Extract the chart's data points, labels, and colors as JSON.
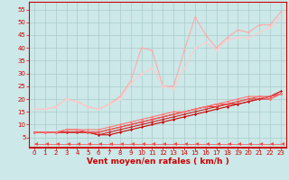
{
  "xlabel": "Vent moyen/en rafales ( km/h )",
  "bg_color": "#cce8e8",
  "grid_color": "#aacccc",
  "x": [
    0,
    1,
    2,
    3,
    4,
    5,
    6,
    7,
    8,
    9,
    10,
    11,
    12,
    13,
    14,
    15,
    16,
    17,
    18,
    19,
    20,
    21,
    22,
    23
  ],
  "lines": [
    {
      "y": [
        7,
        7,
        7,
        7,
        7,
        7,
        6,
        6,
        7,
        8,
        9,
        10,
        11,
        12,
        13,
        14,
        15,
        16,
        17,
        18,
        19,
        20,
        21,
        23
      ],
      "color": "#cc0000",
      "lw": 0.8,
      "marker": "D",
      "ms": 1.5
    },
    {
      "y": [
        7,
        7,
        7,
        7,
        7,
        7,
        6,
        7,
        8,
        9,
        10,
        11,
        12,
        13,
        14,
        15,
        16,
        17,
        18,
        18,
        19,
        20,
        20,
        22
      ],
      "color": "#cc2222",
      "lw": 0.8,
      "marker": "D",
      "ms": 1.5
    },
    {
      "y": [
        7,
        7,
        7,
        7,
        7,
        7,
        7,
        8,
        9,
        10,
        11,
        12,
        13,
        14,
        15,
        16,
        17,
        17,
        18,
        19,
        20,
        20,
        21,
        22
      ],
      "color": "#dd3333",
      "lw": 0.8,
      "marker": "D",
      "ms": 1.5
    },
    {
      "y": [
        7,
        7,
        7,
        8,
        8,
        7,
        7,
        8,
        9,
        10,
        11,
        12,
        13,
        14,
        15,
        16,
        17,
        18,
        18,
        19,
        20,
        21,
        21,
        22
      ],
      "color": "#ee5555",
      "lw": 0.8,
      "marker": "D",
      "ms": 1.5
    },
    {
      "y": [
        7,
        7,
        7,
        8,
        8,
        8,
        8,
        9,
        10,
        11,
        12,
        13,
        14,
        15,
        15,
        16,
        17,
        18,
        19,
        20,
        21,
        21,
        20,
        22
      ],
      "color": "#ff7777",
      "lw": 0.8,
      "marker": "D",
      "ms": 1.5
    },
    {
      "y": [
        16,
        16,
        17,
        20,
        19,
        17,
        16,
        18,
        21,
        27,
        40,
        39,
        25,
        25,
        39,
        52,
        45,
        40,
        44,
        47,
        46,
        49,
        49,
        54
      ],
      "color": "#ffaaaa",
      "lw": 0.8,
      "marker": "D",
      "ms": 1.5
    },
    {
      "y": [
        16,
        16,
        17,
        20,
        19,
        17,
        16,
        18,
        20,
        26,
        30,
        32,
        25,
        24,
        32,
        40,
        42,
        39,
        43,
        44,
        44,
        46,
        48,
        52
      ],
      "color": "#ffcccc",
      "lw": 0.8,
      "marker": "D",
      "ms": 1.5
    },
    {
      "y": [
        2.5,
        2.5,
        2.5,
        2.5,
        2.5,
        2.5,
        2.5,
        2.5,
        2.5,
        2.5,
        2.5,
        2.5,
        2.5,
        2.5,
        2.5,
        2.5,
        2.5,
        2.5,
        2.5,
        2.5,
        2.5,
        2.5,
        2.5,
        2.5
      ],
      "color": "#ff4444",
      "lw": 0.5,
      "marker": 4,
      "ms": 3.5
    }
  ],
  "yticks": [
    5,
    10,
    15,
    20,
    25,
    30,
    35,
    40,
    45,
    50,
    55
  ],
  "ylim": [
    1,
    58
  ],
  "xlim": [
    -0.5,
    23.5
  ],
  "xticks": [
    0,
    1,
    2,
    3,
    4,
    5,
    6,
    7,
    8,
    9,
    10,
    11,
    12,
    13,
    14,
    15,
    16,
    17,
    18,
    19,
    20,
    21,
    22,
    23
  ],
  "xlabel_color": "#cc0000",
  "tick_color": "#cc0000",
  "tick_fontsize": 5.0,
  "xlabel_fontsize": 6.5,
  "spine_color": "#cc0000"
}
